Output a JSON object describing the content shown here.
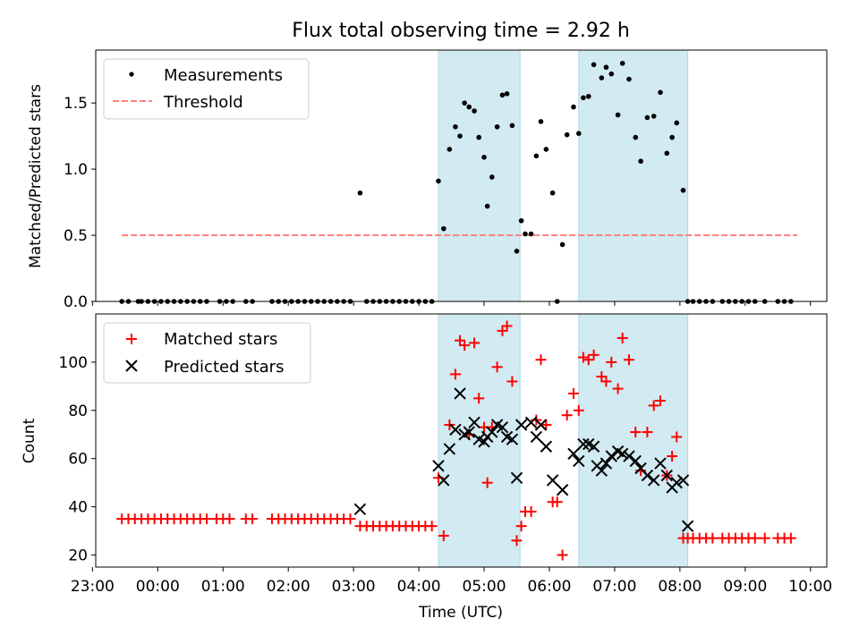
{
  "chart_data": [
    {
      "type": "scatter",
      "title": "Flux total observing time = 2.92 h",
      "xlabel": "",
      "ylabel": "Matched/Predicted stars",
      "xlim": [
        -0.95,
        10.25
      ],
      "ylim": [
        0,
        1.9
      ],
      "yticks": [
        0.0,
        0.5,
        1.0,
        1.5
      ],
      "ytick_labels": [
        "0.0",
        "0.5",
        "1.0",
        "1.5"
      ],
      "shaded_intervals": [
        [
          4.3,
          5.55
        ],
        [
          6.45,
          8.12
        ]
      ],
      "legend_position": "top-left",
      "legend": [
        "Measurements",
        "Threshold"
      ],
      "threshold": {
        "name": "Threshold",
        "value": 0.5,
        "x_range": [
          -0.55,
          9.8
        ],
        "color": "#ff7f7f"
      },
      "series": [
        {
          "name": "Measurements",
          "marker": "dot",
          "color": "#000000",
          "x": [
            -0.55,
            -0.45,
            -0.3,
            -0.25,
            -0.15,
            -0.05,
            0.05,
            0.15,
            0.25,
            0.35,
            0.45,
            0.55,
            0.65,
            0.75,
            0.95,
            1.05,
            1.15,
            1.35,
            1.45,
            1.75,
            1.85,
            1.95,
            2.05,
            2.15,
            2.25,
            2.35,
            2.45,
            2.55,
            2.65,
            2.75,
            2.85,
            2.95,
            3.1,
            3.2,
            3.3,
            3.4,
            3.5,
            3.6,
            3.7,
            3.8,
            3.9,
            4.0,
            4.1,
            4.2,
            4.3,
            4.38,
            4.47,
            4.56,
            4.63,
            4.7,
            4.77,
            4.85,
            4.92,
            5.0,
            5.05,
            5.12,
            5.2,
            5.28,
            5.35,
            5.43,
            5.5,
            5.57,
            5.63,
            5.72,
            5.8,
            5.87,
            5.95,
            6.05,
            6.12,
            6.2,
            6.27,
            6.37,
            6.45,
            6.52,
            6.6,
            6.68,
            6.8,
            6.87,
            6.95,
            7.05,
            7.12,
            7.22,
            7.32,
            7.4,
            7.5,
            7.6,
            7.7,
            7.8,
            7.88,
            7.95,
            8.05,
            8.12,
            8.2,
            8.3,
            8.4,
            8.5,
            8.65,
            8.75,
            8.85,
            8.95,
            9.05,
            9.15,
            9.3,
            9.5,
            9.6,
            9.7
          ],
          "y": [
            0,
            0,
            0,
            0,
            0,
            0,
            0,
            0,
            0,
            0,
            0,
            0,
            0,
            0,
            0,
            0,
            0,
            0,
            0,
            0,
            0,
            0,
            0,
            0,
            0,
            0,
            0,
            0,
            0,
            0,
            0,
            0,
            0.82,
            0,
            0,
            0,
            0,
            0,
            0,
            0,
            0,
            0,
            0,
            0,
            0.91,
            0.55,
            1.15,
            1.32,
            1.25,
            1.5,
            1.47,
            1.44,
            1.24,
            1.09,
            0.72,
            0.94,
            1.32,
            1.56,
            1.57,
            1.33,
            0.38,
            0.61,
            0.51,
            0.51,
            1.1,
            1.36,
            1.15,
            0.82,
            0,
            0.43,
            1.26,
            1.47,
            1.27,
            1.54,
            1.55,
            1.79,
            1.69,
            1.77,
            1.72,
            1.41,
            1.8,
            1.68,
            1.24,
            1.06,
            1.39,
            1.4,
            1.58,
            1.12,
            1.24,
            1.35,
            0.84,
            0,
            0,
            0,
            0,
            0,
            0,
            0,
            0,
            0,
            0,
            0,
            0,
            0,
            0,
            0
          ]
        }
      ]
    },
    {
      "type": "scatter",
      "title": "",
      "xlabel": "Time (UTC)",
      "ylabel": "Count",
      "xlim": [
        -0.95,
        10.25
      ],
      "ylim": [
        15,
        120
      ],
      "yticks": [
        20,
        40,
        60,
        80,
        100
      ],
      "ytick_labels": [
        "20",
        "40",
        "60",
        "80",
        "100"
      ],
      "xticks": [
        -1,
        0,
        1,
        2,
        3,
        4,
        5,
        6,
        7,
        8,
        9,
        10
      ],
      "xtick_labels": [
        "23:00",
        "00:00",
        "01:00",
        "02:00",
        "03:00",
        "04:00",
        "05:00",
        "06:00",
        "07:00",
        "08:00",
        "09:00",
        "10:00"
      ],
      "shaded_intervals": [
        [
          4.3,
          5.55
        ],
        [
          6.45,
          8.12
        ]
      ],
      "legend_position": "top-left",
      "legend": [
        "Matched stars",
        "Predicted stars"
      ],
      "series": [
        {
          "name": "Matched stars",
          "marker": "plus",
          "color": "#ff0000",
          "x": [
            -0.55,
            -0.45,
            -0.35,
            -0.25,
            -0.15,
            -0.05,
            0.05,
            0.15,
            0.25,
            0.35,
            0.45,
            0.55,
            0.65,
            0.75,
            0.9,
            1.0,
            1.1,
            1.35,
            1.45,
            1.75,
            1.85,
            1.95,
            2.05,
            2.15,
            2.25,
            2.35,
            2.45,
            2.55,
            2.65,
            2.75,
            2.85,
            2.95,
            3.1,
            3.2,
            3.3,
            3.4,
            3.5,
            3.6,
            3.7,
            3.8,
            3.9,
            4.0,
            4.1,
            4.2,
            4.3,
            4.38,
            4.47,
            4.56,
            4.63,
            4.7,
            4.77,
            4.85,
            4.92,
            5.0,
            5.05,
            5.12,
            5.2,
            5.28,
            5.35,
            5.43,
            5.5,
            5.57,
            5.63,
            5.72,
            5.8,
            5.87,
            5.95,
            6.05,
            6.12,
            6.2,
            6.27,
            6.37,
            6.45,
            6.52,
            6.6,
            6.68,
            6.8,
            6.87,
            6.95,
            7.05,
            7.12,
            7.22,
            7.32,
            7.4,
            7.5,
            7.6,
            7.7,
            7.8,
            7.88,
            7.95,
            8.05,
            8.12,
            8.2,
            8.3,
            8.4,
            8.5,
            8.65,
            8.75,
            8.85,
            8.95,
            9.05,
            9.15,
            9.3,
            9.5,
            9.6,
            9.7
          ],
          "y": [
            35,
            35,
            35,
            35,
            35,
            35,
            35,
            35,
            35,
            35,
            35,
            35,
            35,
            35,
            35,
            35,
            35,
            35,
            35,
            35,
            35,
            35,
            35,
            35,
            35,
            35,
            35,
            35,
            35,
            35,
            35,
            35,
            32,
            32,
            32,
            32,
            32,
            32,
            32,
            32,
            32,
            32,
            32,
            32,
            52,
            28,
            74,
            95,
            109,
            107,
            70,
            108,
            85,
            73,
            50,
            73,
            98,
            113,
            115,
            92,
            26,
            32,
            38,
            38,
            76,
            101,
            74,
            42,
            42,
            20,
            78,
            87,
            80,
            102,
            101,
            103,
            94,
            92,
            100,
            89,
            110,
            101,
            71,
            55,
            71,
            82,
            84,
            53,
            61,
            69,
            27,
            27,
            27,
            27,
            27,
            27,
            27,
            27,
            27,
            27,
            27,
            27,
            27,
            27,
            27,
            27
          ]
        },
        {
          "name": "Predicted stars",
          "marker": "x",
          "color": "#000000",
          "x": [
            3.1,
            4.3,
            4.38,
            4.47,
            4.56,
            4.63,
            4.7,
            4.77,
            4.85,
            4.92,
            5.0,
            5.05,
            5.12,
            5.2,
            5.28,
            5.35,
            5.43,
            5.5,
            5.57,
            5.72,
            5.8,
            5.87,
            5.95,
            6.05,
            6.2,
            6.37,
            6.45,
            6.52,
            6.6,
            6.68,
            6.73,
            6.8,
            6.87,
            6.95,
            7.05,
            7.12,
            7.22,
            7.32,
            7.4,
            7.5,
            7.6,
            7.7,
            7.8,
            7.88,
            7.95,
            8.05,
            8.12
          ],
          "y": [
            39,
            57,
            51,
            64,
            72,
            87,
            70,
            71,
            75,
            68,
            67,
            69,
            71,
            74,
            73,
            69,
            68,
            52,
            74,
            75,
            69,
            74,
            65,
            51,
            47,
            62,
            59,
            66,
            66,
            65,
            57,
            55,
            58,
            61,
            63,
            62,
            61,
            59,
            56,
            53,
            51,
            58,
            53,
            48,
            50,
            51,
            32
          ]
        }
      ]
    }
  ]
}
